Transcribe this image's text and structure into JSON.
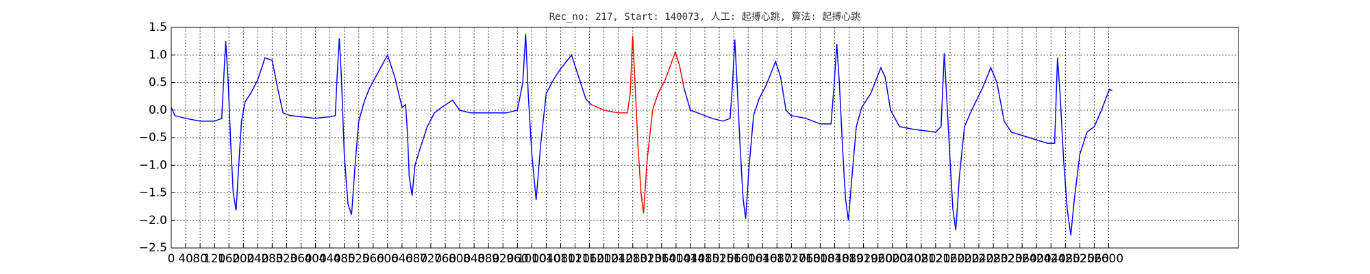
{
  "chart_data": {
    "type": "line",
    "title": "Rec_no: 217, Start: 140073, 人工: 起搏心跳, 算法: 起搏心跳",
    "xlim": [
      0,
      2960
    ],
    "ylim": [
      -2.5,
      1.5
    ],
    "xticks": [
      0,
      40,
      80,
      120,
      160,
      200,
      240,
      280,
      320,
      360,
      400,
      440,
      480,
      520,
      560,
      600,
      640,
      680,
      720,
      760,
      800,
      840,
      880,
      920,
      960,
      1000,
      1040,
      1080,
      1120,
      1160,
      1200,
      1240,
      1280,
      1320,
      1360,
      1400,
      1440,
      1480,
      1520,
      1560,
      1600,
      1640,
      1680,
      1720,
      1760,
      1800,
      1840,
      1880,
      1920,
      1960,
      2000,
      2040,
      2080,
      2120,
      2160,
      2200,
      2240,
      2280,
      2320,
      2360,
      2400,
      2440,
      2480,
      2520,
      2560,
      2600
    ],
    "yticks": [
      {
        "value": -2.5,
        "label": "−2.5"
      },
      {
        "value": -2.0,
        "label": "−2.0"
      },
      {
        "value": -1.5,
        "label": "−1.5"
      },
      {
        "value": -1.0,
        "label": "−1.0"
      },
      {
        "value": -0.5,
        "label": "−0.5"
      },
      {
        "value": 0.0,
        "label": "0.0"
      },
      0.5,
      {
        "value": 1.0,
        "label": "1.0"
      },
      1.5
    ],
    "grid": true,
    "series": [
      {
        "color": "#0000ff",
        "x": [
          0,
          10,
          40,
          80,
          120,
          140,
          145,
          151,
          158,
          165,
          172,
          180,
          188,
          195,
          205,
          220,
          240,
          260,
          280,
          295,
          310,
          330,
          360,
          400,
          440,
          455,
          460,
          466,
          472,
          480,
          490,
          500,
          510,
          520,
          535,
          550,
          575,
          600,
          620,
          640,
          650,
          655,
          660,
          668,
          676,
          690,
          710,
          730,
          750,
          780,
          800,
          830,
          880,
          930,
          960,
          975,
          983,
          990,
          1000,
          1012,
          1025,
          1040,
          1060,
          1080,
          1110,
          1130,
          1150,
          1165
        ],
        "values": [
          0.05,
          -0.1,
          -0.15,
          -0.2,
          -0.2,
          -0.15,
          0.5,
          1.25,
          0.5,
          -0.6,
          -1.5,
          -1.82,
          -0.9,
          -0.2,
          0.15,
          0.3,
          0.55,
          0.95,
          0.9,
          0.4,
          -0.05,
          -0.1,
          -0.12,
          -0.15,
          -0.12,
          -0.1,
          0.6,
          1.3,
          0.6,
          -0.8,
          -1.7,
          -1.9,
          -1.0,
          -0.2,
          0.15,
          0.4,
          0.7,
          1.0,
          0.6,
          0.05,
          0.1,
          -0.4,
          -1.2,
          -1.55,
          -1.0,
          -0.7,
          -0.3,
          -0.05,
          0.05,
          0.18,
          0.0,
          -0.05,
          -0.05,
          -0.05,
          0.0,
          0.5,
          1.38,
          0.3,
          -0.8,
          -1.63,
          -0.6,
          0.3,
          0.55,
          0.75,
          1.0,
          0.6,
          0.2,
          0.1
        ]
      },
      {
        "color": "#ff0000",
        "x": [
          1165,
          1200,
          1240,
          1265,
          1273,
          1280,
          1287,
          1295,
          1303,
          1310,
          1320,
          1335,
          1350,
          1370,
          1398,
          1410,
          1422
        ],
        "values": [
          0.1,
          0.0,
          -0.05,
          -0.05,
          0.3,
          1.35,
          0.4,
          -0.7,
          -1.5,
          -1.87,
          -0.9,
          0.0,
          0.3,
          0.55,
          1.05,
          0.8,
          0.4
        ]
      },
      {
        "color": "#0000ff",
        "x": [
          1422,
          1440,
          1460,
          1500,
          1530,
          1550,
          1557,
          1563,
          1570,
          1578,
          1586,
          1593,
          1603,
          1615,
          1630,
          1650,
          1676,
          1690,
          1705,
          1720,
          1760,
          1800,
          1830,
          1838,
          1846,
          1853,
          1862,
          1870,
          1878,
          1888,
          1900,
          1915,
          1940,
          1968,
          1980,
          1995,
          2020,
          2060,
          2120,
          2135,
          2144,
          2151,
          2160,
          2168,
          2176,
          2186,
          2200,
          2220,
          2250,
          2273,
          2290,
          2310,
          2330,
          2380,
          2430,
          2450,
          2458,
          2465,
          2475,
          2485,
          2495,
          2505,
          2520,
          2540,
          2560,
          2580,
          2602,
          2610
        ],
        "values": [
          0.4,
          0.0,
          -0.05,
          -0.15,
          -0.2,
          -0.15,
          0.5,
          1.28,
          0.4,
          -0.7,
          -1.6,
          -1.97,
          -1.0,
          -0.1,
          0.2,
          0.45,
          0.88,
          0.6,
          0.0,
          -0.1,
          -0.15,
          -0.25,
          -0.25,
          0.4,
          1.2,
          0.5,
          -0.7,
          -1.6,
          -2.0,
          -1.2,
          -0.3,
          0.05,
          0.3,
          0.77,
          0.6,
          0.0,
          -0.3,
          -0.35,
          -0.4,
          -0.3,
          1.03,
          0.2,
          -0.9,
          -1.8,
          -2.18,
          -1.2,
          -0.3,
          0.0,
          0.4,
          0.77,
          0.5,
          -0.2,
          -0.4,
          -0.5,
          -0.6,
          -0.6,
          0.95,
          0.3,
          -0.9,
          -1.8,
          -2.27,
          -1.6,
          -0.8,
          -0.4,
          -0.3,
          0.0,
          0.38,
          0.35
        ]
      }
    ]
  }
}
